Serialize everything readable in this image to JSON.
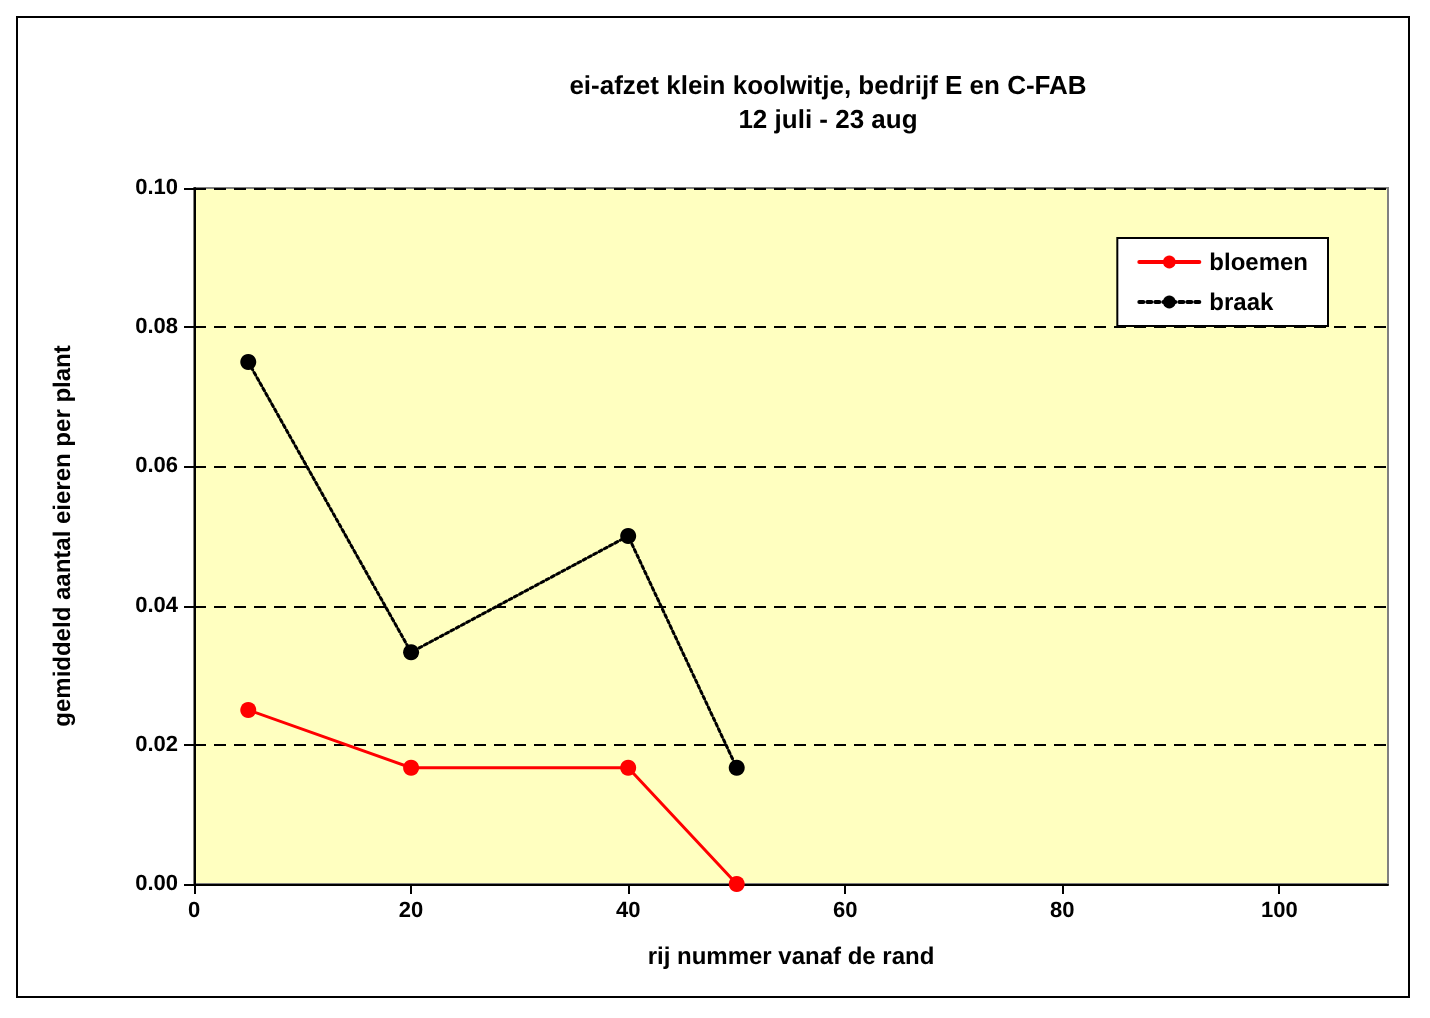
{
  "chart_data": {
    "type": "line",
    "title": "ei-afzet klein koolwitje, bedrijf E en C-FAB",
    "subtitle": "12 juli - 23 aug",
    "xlabel": "rij nummer vanaf de rand",
    "ylabel": "gemiddeld aantal eieren per plant",
    "x": [
      5,
      20,
      40,
      50
    ],
    "series": [
      {
        "name": "bloemen",
        "color": "#ff0000",
        "values": [
          0.025,
          0.0167,
          0.0167,
          0
        ],
        "line_style": "solid"
      },
      {
        "name": "braak",
        "color": "#000000",
        "values": [
          0.075,
          0.0333,
          0.05,
          0.0167
        ],
        "line_style": "dotted"
      }
    ],
    "xlim": [
      0,
      110
    ],
    "xticks": [
      0,
      20,
      40,
      60,
      80,
      100
    ],
    "ylim": [
      0,
      0.1
    ],
    "yticks": [
      {
        "value": 0,
        "label": "0.00"
      },
      {
        "value": 0.02,
        "label": "0.02"
      },
      {
        "value": 0.04,
        "label": "0.04"
      },
      {
        "value": 0.06,
        "label": "0.06"
      },
      {
        "value": 0.08,
        "label": "0.08"
      },
      {
        "value": 0.1,
        "label": "0.10"
      }
    ],
    "grid": "y",
    "legend": "top right",
    "marker": "circle"
  }
}
